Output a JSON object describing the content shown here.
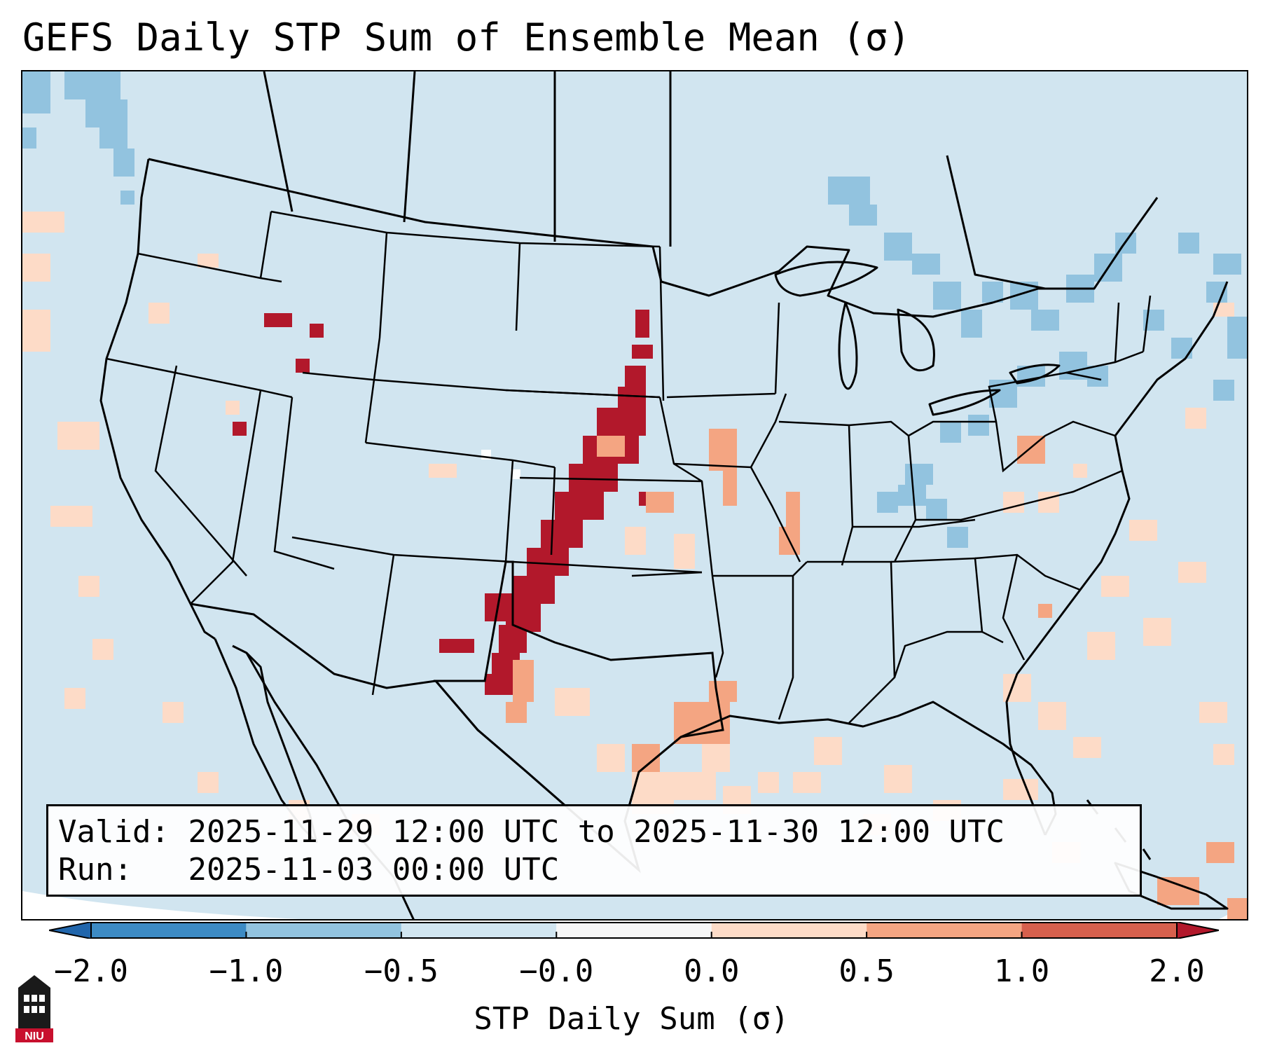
{
  "title": "GEFS Daily STP Sum of Ensemble Mean (σ)",
  "info": {
    "valid_label": "Valid:",
    "valid_value": "2025-11-29 12:00 UTC to 2025-11-30 12:00 UTC",
    "run_label": "Run:",
    "run_value": "2025-11-03 00:00 UTC"
  },
  "colorbar": {
    "label": "STP Daily Sum (σ)",
    "ticks": [
      "−2.0",
      "−1.0",
      "−0.5",
      "−0.0",
      "0.0",
      "0.5",
      "1.0",
      "2.0"
    ],
    "bin_colors": [
      "#3d8bc4",
      "#92c3df",
      "#d1e5f0",
      "#f7f7f7",
      "#fddbc7",
      "#f4a582",
      "#d6604d"
    ],
    "under_color": "#2166ac",
    "over_color": "#b2182b"
  },
  "colors": {
    "ocean_background": "#d1e5f0",
    "neutral": "#d1e5f0",
    "high_positive": "#b2182b",
    "moderate_positive": "#f4a582",
    "light_positive": "#fddbc7",
    "light_negative": "#92c3df",
    "missing": "#ffffff",
    "borders": "#000000"
  },
  "logo": {
    "text": "NIU",
    "icon": "university-tower-icon"
  }
}
